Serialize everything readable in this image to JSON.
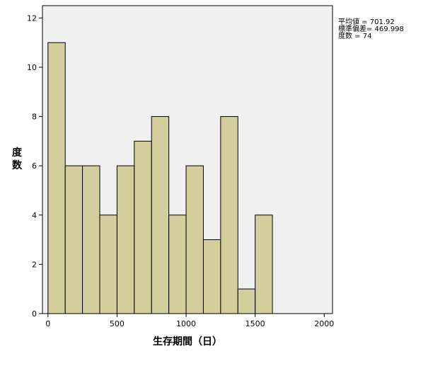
{
  "chart_data": {
    "type": "bar",
    "subtype": "histogram",
    "xlabel": "生存期間（日）",
    "ylabel": "度数",
    "xlim": [
      -40,
      2060
    ],
    "ylim": [
      0,
      12.5
    ],
    "x_ticks": [
      0,
      500,
      1000,
      1500,
      2000
    ],
    "y_ticks": [
      0,
      2,
      4,
      6,
      8,
      10,
      12
    ],
    "bin_width": 125,
    "bins": [
      {
        "start": 0,
        "end": 125,
        "count": 11
      },
      {
        "start": 125,
        "end": 250,
        "count": 6
      },
      {
        "start": 250,
        "end": 375,
        "count": 6
      },
      {
        "start": 375,
        "end": 500,
        "count": 4
      },
      {
        "start": 500,
        "end": 625,
        "count": 6
      },
      {
        "start": 625,
        "end": 750,
        "count": 7
      },
      {
        "start": 750,
        "end": 875,
        "count": 8
      },
      {
        "start": 875,
        "end": 1000,
        "count": 4
      },
      {
        "start": 1000,
        "end": 1125,
        "count": 6
      },
      {
        "start": 1125,
        "end": 1250,
        "count": 3
      },
      {
        "start": 1250,
        "end": 1375,
        "count": 8
      },
      {
        "start": 1375,
        "end": 1500,
        "count": 1
      },
      {
        "start": 1500,
        "end": 1625,
        "count": 4
      }
    ],
    "grid": false,
    "bar_color": "#d3ce9b",
    "plot_background": "#f0f0f0"
  },
  "stats": {
    "mean": "平均値 = 701.92",
    "sd": "標準偏差= 469.998",
    "n": "度数 = 74"
  }
}
